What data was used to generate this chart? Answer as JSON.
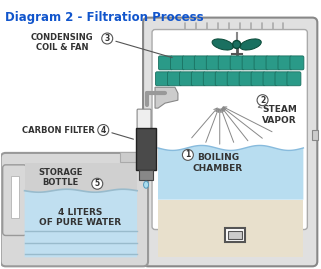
{
  "title": "Diagram 2 - Filtration Process",
  "title_color": "#1155cc",
  "title_fontsize": 8.5,
  "bg_color": "#ffffff",
  "labels": {
    "condensing": "CONDENSING\nCOIL & FAN",
    "carbon": "CARBON FILTER",
    "storage": "STORAGE\nBOTTLE",
    "pure_water": "4 LITERS\nOF PURE WATER",
    "steam": "STEAM\nVAPOR",
    "boiling": "BOILING\nCHAMBER"
  },
  "distiller_body_color": "#e0e0e0",
  "distiller_border_color": "#888888",
  "distiller_inner_color": "#f0f0f0",
  "water_color": "#b8ddf0",
  "steam_area_color": "#e8f4fb",
  "coil_color_dark": "#1a7060",
  "coil_color_mid": "#2a9a88",
  "coil_color_light": "#3abaa8",
  "fan_color": "#1a7060",
  "carbon_filter_color": "#4a4a4a",
  "storage_bottle_color": "#d8d8d8",
  "storage_water_top_color": "#d0e8f0",
  "storage_water_bot_color": "#c0dff0",
  "cream_color": "#e8e0cc",
  "label_fontsize": 6.0,
  "num_fontsize": 5.5
}
